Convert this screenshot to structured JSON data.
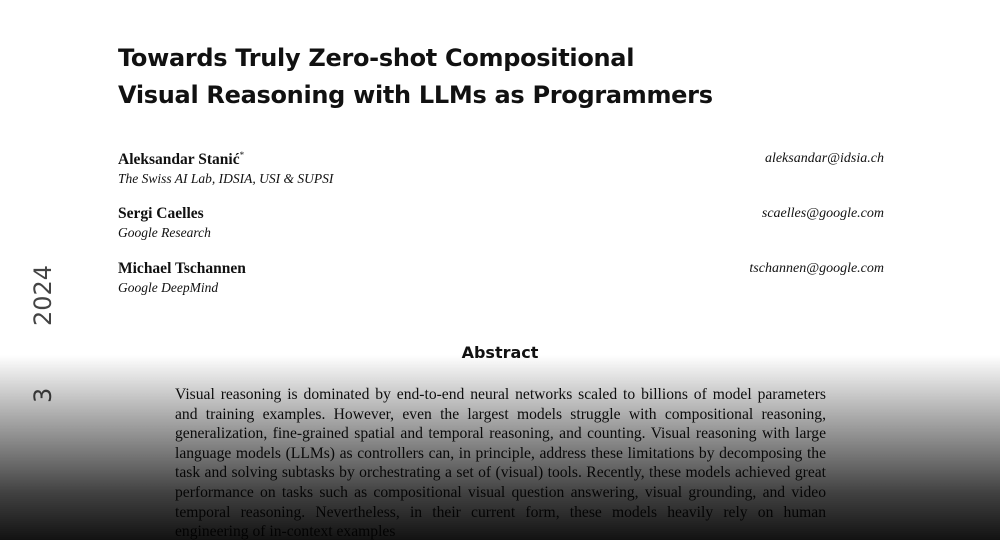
{
  "title_lines": [
    "Towards Truly Zero-shot Compositional",
    "Visual Reasoning with LLMs as Programmers"
  ],
  "authors": [
    {
      "name": "Aleksandar Stanić",
      "mark": "*",
      "affiliation": "The Swiss AI Lab, IDSIA, USI & SUPSI",
      "email": "aleksandar@idsia.ch"
    },
    {
      "name": "Sergi Caelles",
      "affiliation": "Google Research",
      "email": "scaelles@google.com"
    },
    {
      "name": "Michael Tschannen",
      "affiliation": "Google DeepMind",
      "email": "tschannen@google.com"
    }
  ],
  "side_margin": {
    "year": "2024",
    "day": "3"
  },
  "abstract": {
    "heading": "Abstract",
    "text": "Visual reasoning is dominated by end-to-end neural networks scaled to billions of model parameters and training examples. However, even the largest models struggle with compositional reasoning, generalization, fine-grained spatial and temporal reasoning, and counting. Visual reasoning with large language models (LLMs) as controllers can, in principle, address these limitations by decomposing the task and solving subtasks by orchestrating a set of (visual) tools. Recently, these models achieved great performance on tasks such as compositional visual question answering, visual grounding, and video temporal reasoning. Nevertheless, in their current form, these models heavily rely on human engineering of in-context examples"
  }
}
